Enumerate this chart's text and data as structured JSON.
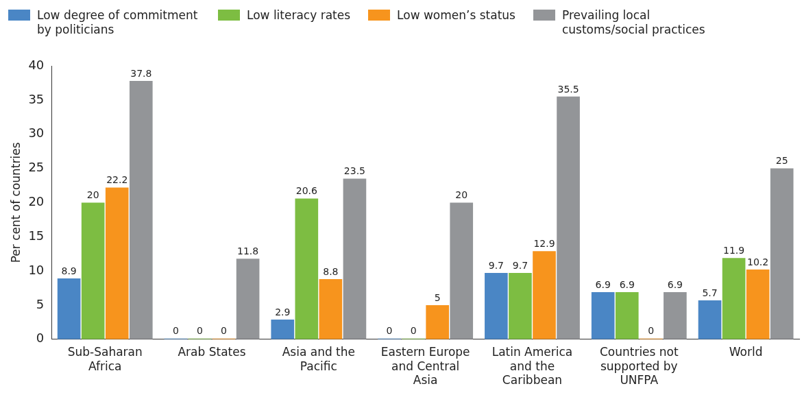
{
  "chart_data": {
    "type": "bar",
    "ylabel": "Per cent of countries",
    "categories": [
      "Sub-Saharan Africa",
      "Arab States",
      "Asia and the Pacific",
      "Eastern Europe and Central Asia",
      "Latin America and the Caribbean",
      "Countries not supported by UNFPA",
      "World"
    ],
    "series": [
      {
        "name": "Low degree of commitment by politicians",
        "color": "#4a86c5",
        "values": [
          8.9,
          0,
          2.9,
          0,
          9.7,
          6.9,
          5.7
        ]
      },
      {
        "name": "Low literacy rates",
        "color": "#7dbd42",
        "values": [
          20,
          0,
          20.6,
          0,
          9.7,
          6.9,
          11.9
        ]
      },
      {
        "name": "Low women’s status",
        "color": "#f7941d",
        "values": [
          22.2,
          0,
          8.8,
          5,
          12.9,
          0,
          10.2
        ]
      },
      {
        "name": "Prevailing local customs/social practices",
        "color": "#939598",
        "values": [
          37.8,
          11.8,
          23.5,
          20,
          35.5,
          6.9,
          25
        ]
      }
    ],
    "ylim": [
      0,
      40
    ],
    "yticks": [
      0,
      5,
      10,
      15,
      20,
      25,
      30,
      35,
      40
    ],
    "grid": false,
    "legend": "top left",
    "data_labels": true
  }
}
